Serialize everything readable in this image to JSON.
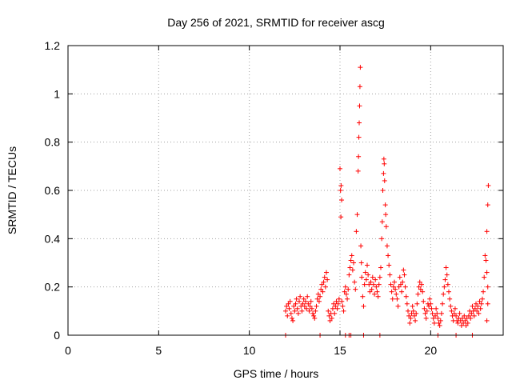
{
  "chart_data": {
    "type": "scatter",
    "title": "Day 256 of 2021, SRMTID for receiver ascg",
    "xlabel": "GPS time / hours",
    "ylabel": "SRMTID / TECUs",
    "xlim": [
      0,
      24
    ],
    "ylim": [
      0,
      1.2
    ],
    "xticks": [
      0,
      5,
      10,
      15,
      20
    ],
    "xtick_labels": [
      "0",
      "5",
      "10",
      "15",
      "20"
    ],
    "yticks": [
      0,
      0.2,
      0.4,
      0.6,
      0.8,
      1.0,
      1.2
    ],
    "ytick_labels": [
      "0",
      "0.2",
      "0.4",
      "0.6",
      "0.8",
      "1",
      "1.2"
    ],
    "grid": true,
    "marker": "+",
    "series": [
      {
        "name": "SRMTID",
        "color": "#ff0000",
        "points": [
          [
            12.0,
            0.0
          ],
          [
            13.9,
            0.0
          ],
          [
            15.3,
            0.0
          ],
          [
            15.5,
            0.0
          ],
          [
            15.6,
            0.0
          ],
          [
            16.3,
            0.0
          ],
          [
            17.2,
            0.0
          ],
          [
            20.4,
            0.0
          ],
          [
            21.4,
            0.0
          ],
          [
            22.3,
            0.0
          ],
          [
            12.0,
            0.1
          ],
          [
            12.05,
            0.12
          ],
          [
            12.1,
            0.08
          ],
          [
            12.15,
            0.13
          ],
          [
            12.2,
            0.11
          ],
          [
            12.25,
            0.14
          ],
          [
            12.3,
            0.09
          ],
          [
            12.35,
            0.07
          ],
          [
            12.4,
            0.06
          ],
          [
            12.45,
            0.12
          ],
          [
            12.5,
            0.1
          ],
          [
            12.55,
            0.13
          ],
          [
            12.6,
            0.15
          ],
          [
            12.65,
            0.11
          ],
          [
            12.7,
            0.09
          ],
          [
            12.75,
            0.14
          ],
          [
            12.8,
            0.16
          ],
          [
            12.85,
            0.12
          ],
          [
            12.9,
            0.1
          ],
          [
            12.95,
            0.13
          ],
          [
            13.0,
            0.15
          ],
          [
            13.05,
            0.12
          ],
          [
            13.1,
            0.14
          ],
          [
            13.15,
            0.11
          ],
          [
            13.2,
            0.16
          ],
          [
            13.25,
            0.13
          ],
          [
            13.3,
            0.1
          ],
          [
            13.35,
            0.12
          ],
          [
            13.4,
            0.14
          ],
          [
            13.45,
            0.11
          ],
          [
            13.5,
            0.09
          ],
          [
            13.55,
            0.08
          ],
          [
            13.6,
            0.07
          ],
          [
            13.65,
            0.1
          ],
          [
            13.7,
            0.12
          ],
          [
            13.75,
            0.15
          ],
          [
            13.8,
            0.17
          ],
          [
            13.85,
            0.14
          ],
          [
            13.9,
            0.16
          ],
          [
            13.95,
            0.19
          ],
          [
            14.0,
            0.21
          ],
          [
            14.05,
            0.18
          ],
          [
            14.1,
            0.22
          ],
          [
            14.15,
            0.24
          ],
          [
            14.2,
            0.2
          ],
          [
            14.25,
            0.26
          ],
          [
            14.3,
            0.23
          ],
          [
            14.35,
            0.1
          ],
          [
            14.4,
            0.08
          ],
          [
            14.45,
            0.06
          ],
          [
            14.5,
            0.09
          ],
          [
            14.55,
            0.07
          ],
          [
            14.6,
            0.11
          ],
          [
            14.65,
            0.13
          ],
          [
            14.7,
            0.09
          ],
          [
            14.75,
            0.12
          ],
          [
            14.8,
            0.14
          ],
          [
            14.85,
            0.11
          ],
          [
            14.9,
            0.13
          ],
          [
            14.95,
            0.15
          ],
          [
            15.0,
            0.69
          ],
          [
            15.03,
            0.6
          ],
          [
            15.06,
            0.62
          ],
          [
            15.09,
            0.56
          ],
          [
            15.05,
            0.49
          ],
          [
            15.1,
            0.14
          ],
          [
            15.15,
            0.12
          ],
          [
            15.2,
            0.1
          ],
          [
            15.25,
            0.18
          ],
          [
            15.3,
            0.2
          ],
          [
            15.35,
            0.17
          ],
          [
            15.4,
            0.15
          ],
          [
            15.45,
            0.19
          ],
          [
            15.5,
            0.25
          ],
          [
            15.55,
            0.28
          ],
          [
            15.6,
            0.31
          ],
          [
            15.65,
            0.33
          ],
          [
            15.7,
            0.27
          ],
          [
            15.75,
            0.3
          ],
          [
            15.8,
            0.22
          ],
          [
            15.85,
            0.19
          ],
          [
            15.9,
            0.43
          ],
          [
            15.95,
            0.5
          ],
          [
            16.0,
            0.68
          ],
          [
            16.02,
            0.74
          ],
          [
            16.04,
            0.82
          ],
          [
            16.06,
            0.88
          ],
          [
            16.08,
            0.95
          ],
          [
            16.1,
            1.03
          ],
          [
            16.12,
            1.11
          ],
          [
            16.15,
            0.37
          ],
          [
            16.18,
            0.3
          ],
          [
            16.2,
            0.24
          ],
          [
            16.25,
            0.16
          ],
          [
            16.3,
            0.12
          ],
          [
            16.35,
            0.21
          ],
          [
            16.4,
            0.26
          ],
          [
            16.45,
            0.23
          ],
          [
            16.5,
            0.29
          ],
          [
            16.55,
            0.25
          ],
          [
            16.6,
            0.21
          ],
          [
            16.65,
            0.18
          ],
          [
            16.7,
            0.22
          ],
          [
            16.75,
            0.19
          ],
          [
            16.8,
            0.24
          ],
          [
            16.85,
            0.21
          ],
          [
            16.9,
            0.17
          ],
          [
            16.95,
            0.23
          ],
          [
            17.0,
            0.2
          ],
          [
            17.05,
            0.18
          ],
          [
            17.1,
            0.16
          ],
          [
            17.15,
            0.21
          ],
          [
            17.2,
            0.24
          ],
          [
            17.25,
            0.28
          ],
          [
            17.3,
            0.4
          ],
          [
            17.33,
            0.47
          ],
          [
            17.36,
            0.6
          ],
          [
            17.4,
            0.67
          ],
          [
            17.42,
            0.73
          ],
          [
            17.44,
            0.71
          ],
          [
            17.46,
            0.64
          ],
          [
            17.5,
            0.54
          ],
          [
            17.52,
            0.5
          ],
          [
            17.55,
            0.45
          ],
          [
            17.6,
            0.37
          ],
          [
            17.65,
            0.33
          ],
          [
            17.7,
            0.29
          ],
          [
            17.75,
            0.25
          ],
          [
            17.8,
            0.21
          ],
          [
            17.85,
            0.18
          ],
          [
            17.9,
            0.15
          ],
          [
            17.95,
            0.2
          ],
          [
            18.0,
            0.22
          ],
          [
            18.05,
            0.19
          ],
          [
            18.1,
            0.17
          ],
          [
            18.15,
            0.15
          ],
          [
            18.2,
            0.12
          ],
          [
            18.25,
            0.2
          ],
          [
            18.3,
            0.24
          ],
          [
            18.35,
            0.21
          ],
          [
            18.4,
            0.18
          ],
          [
            18.45,
            0.22
          ],
          [
            18.5,
            0.27
          ],
          [
            18.55,
            0.25
          ],
          [
            18.6,
            0.2
          ],
          [
            18.65,
            0.16
          ],
          [
            18.7,
            0.13
          ],
          [
            18.75,
            0.1
          ],
          [
            18.8,
            0.08
          ],
          [
            18.85,
            0.05
          ],
          [
            18.9,
            0.07
          ],
          [
            18.95,
            0.09
          ],
          [
            19.0,
            0.12
          ],
          [
            19.05,
            0.1
          ],
          [
            19.1,
            0.08
          ],
          [
            19.15,
            0.06
          ],
          [
            19.2,
            0.09
          ],
          [
            19.25,
            0.13
          ],
          [
            19.3,
            0.17
          ],
          [
            19.35,
            0.2
          ],
          [
            19.4,
            0.22
          ],
          [
            19.45,
            0.19
          ],
          [
            19.5,
            0.21
          ],
          [
            19.55,
            0.18
          ],
          [
            19.6,
            0.14
          ],
          [
            19.65,
            0.11
          ],
          [
            19.7,
            0.09
          ],
          [
            19.75,
            0.07
          ],
          [
            19.8,
            0.1
          ],
          [
            19.85,
            0.13
          ],
          [
            19.9,
            0.12
          ],
          [
            19.95,
            0.15
          ],
          [
            20.0,
            0.13
          ],
          [
            20.05,
            0.11
          ],
          [
            20.1,
            0.09
          ],
          [
            20.15,
            0.07
          ],
          [
            20.2,
            0.05
          ],
          [
            20.25,
            0.08
          ],
          [
            20.3,
            0.11
          ],
          [
            20.35,
            0.09
          ],
          [
            20.4,
            0.07
          ],
          [
            20.45,
            0.05
          ],
          [
            20.5,
            0.04
          ],
          [
            20.55,
            0.06
          ],
          [
            20.6,
            0.09
          ],
          [
            20.65,
            0.13
          ],
          [
            20.7,
            0.17
          ],
          [
            20.75,
            0.2
          ],
          [
            20.8,
            0.23
          ],
          [
            20.85,
            0.28
          ],
          [
            20.9,
            0.25
          ],
          [
            20.95,
            0.21
          ],
          [
            21.0,
            0.18
          ],
          [
            21.05,
            0.15
          ],
          [
            21.1,
            0.12
          ],
          [
            21.15,
            0.1
          ],
          [
            21.2,
            0.08
          ],
          [
            21.25,
            0.06
          ],
          [
            21.3,
            0.09
          ],
          [
            21.35,
            0.11
          ],
          [
            21.4,
            0.08
          ],
          [
            21.45,
            0.06
          ],
          [
            21.5,
            0.05
          ],
          [
            21.55,
            0.07
          ],
          [
            21.6,
            0.09
          ],
          [
            21.65,
            0.06
          ],
          [
            21.7,
            0.04
          ],
          [
            21.75,
            0.07
          ],
          [
            21.8,
            0.05
          ],
          [
            21.85,
            0.08
          ],
          [
            21.9,
            0.06
          ],
          [
            21.95,
            0.04
          ],
          [
            22.0,
            0.07
          ],
          [
            22.05,
            0.05
          ],
          [
            22.1,
            0.08
          ],
          [
            22.15,
            0.1
          ],
          [
            22.2,
            0.07
          ],
          [
            22.25,
            0.09
          ],
          [
            22.3,
            0.12
          ],
          [
            22.35,
            0.1
          ],
          [
            22.4,
            0.08
          ],
          [
            22.45,
            0.11
          ],
          [
            22.5,
            0.13
          ],
          [
            22.55,
            0.1
          ],
          [
            22.6,
            0.12
          ],
          [
            22.65,
            0.09
          ],
          [
            22.7,
            0.14
          ],
          [
            22.75,
            0.11
          ],
          [
            22.8,
            0.13
          ],
          [
            22.85,
            0.15
          ],
          [
            22.9,
            0.18
          ],
          [
            22.95,
            0.24
          ],
          [
            23.0,
            0.33
          ],
          [
            23.05,
            0.31
          ],
          [
            23.1,
            0.26
          ],
          [
            23.15,
            0.2
          ],
          [
            23.1,
            0.06
          ],
          [
            23.15,
            0.13
          ],
          [
            23.1,
            0.43
          ],
          [
            23.15,
            0.54
          ],
          [
            23.18,
            0.62
          ]
        ]
      }
    ]
  }
}
